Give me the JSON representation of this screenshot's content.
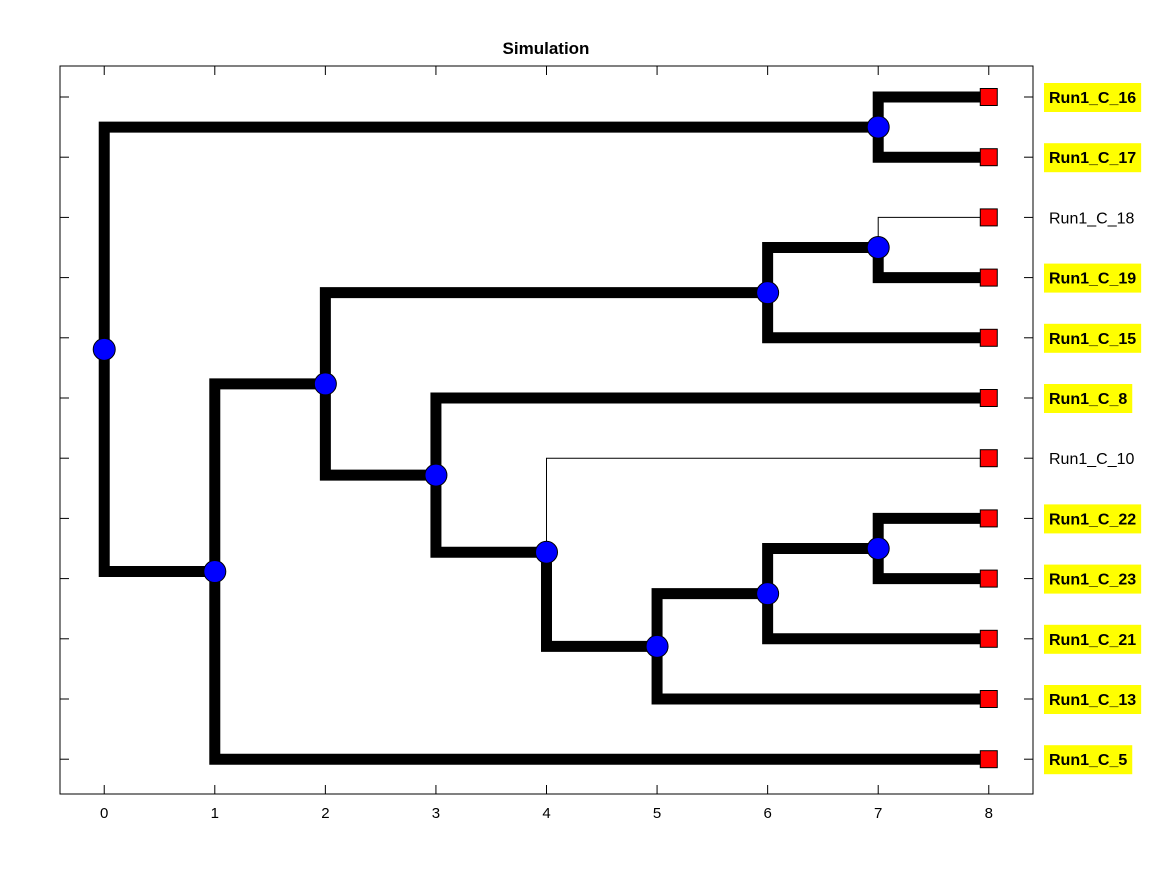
{
  "title": "Simulation",
  "colors": {
    "edge": "#000000",
    "node_fill": "#0000ff",
    "leaf_fill": "#ff0000",
    "highlight": "#ffff00"
  },
  "x_axis": {
    "ticks": [
      "0",
      "1",
      "2",
      "3",
      "4",
      "5",
      "6",
      "7",
      "8"
    ],
    "range": [
      -0.4,
      8.4
    ]
  },
  "leaves": [
    {
      "label": "Run1_C_16",
      "highlighted": true
    },
    {
      "label": "Run1_C_17",
      "highlighted": true
    },
    {
      "label": "Run1_C_18",
      "highlighted": false
    },
    {
      "label": "Run1_C_19",
      "highlighted": true
    },
    {
      "label": "Run1_C_15",
      "highlighted": true
    },
    {
      "label": "Run1_C_8",
      "highlighted": true
    },
    {
      "label": "Run1_C_10",
      "highlighted": false
    },
    {
      "label": "Run1_C_22",
      "highlighted": true
    },
    {
      "label": "Run1_C_23",
      "highlighted": true
    },
    {
      "label": "Run1_C_21",
      "highlighted": true
    },
    {
      "label": "Run1_C_13",
      "highlighted": true
    },
    {
      "label": "Run1_C_5",
      "highlighted": true
    }
  ],
  "tree": {
    "id": "n0",
    "depth": 0,
    "children": [
      {
        "id": "n1",
        "depth": 7,
        "thick": true,
        "children": [
          {
            "leaf": 0,
            "thick": true
          },
          {
            "leaf": 1,
            "thick": true
          }
        ]
      },
      {
        "id": "n2",
        "depth": 1,
        "thick": true,
        "children": [
          {
            "id": "n3",
            "depth": 2,
            "thick": true,
            "children": [
              {
                "id": "n4",
                "depth": 6,
                "thick": true,
                "children": [
                  {
                    "id": "n5",
                    "depth": 7,
                    "thick": true,
                    "children": [
                      {
                        "leaf": 2,
                        "thick": false
                      },
                      {
                        "leaf": 3,
                        "thick": true
                      }
                    ]
                  },
                  {
                    "leaf": 4,
                    "thick": true
                  }
                ]
              },
              {
                "id": "n6",
                "depth": 3,
                "thick": true,
                "children": [
                  {
                    "leaf": 5,
                    "thick": true
                  },
                  {
                    "id": "n7",
                    "depth": 4,
                    "thick": true,
                    "children": [
                      {
                        "leaf": 6,
                        "thick": false
                      },
                      {
                        "id": "n8",
                        "depth": 5,
                        "thick": true,
                        "children": [
                          {
                            "id": "n9",
                            "depth": 6,
                            "thick": true,
                            "children": [
                              {
                                "id": "n10",
                                "depth": 7,
                                "thick": true,
                                "children": [
                                  {
                                    "leaf": 7,
                                    "thick": true
                                  },
                                  {
                                    "leaf": 8,
                                    "thick": true
                                  }
                                ]
                              },
                              {
                                "leaf": 9,
                                "thick": true
                              }
                            ]
                          },
                          {
                            "leaf": 10,
                            "thick": true
                          }
                        ]
                      }
                    ]
                  }
                ]
              }
            ]
          },
          {
            "leaf": 11,
            "thick": true
          }
        ]
      }
    ]
  }
}
